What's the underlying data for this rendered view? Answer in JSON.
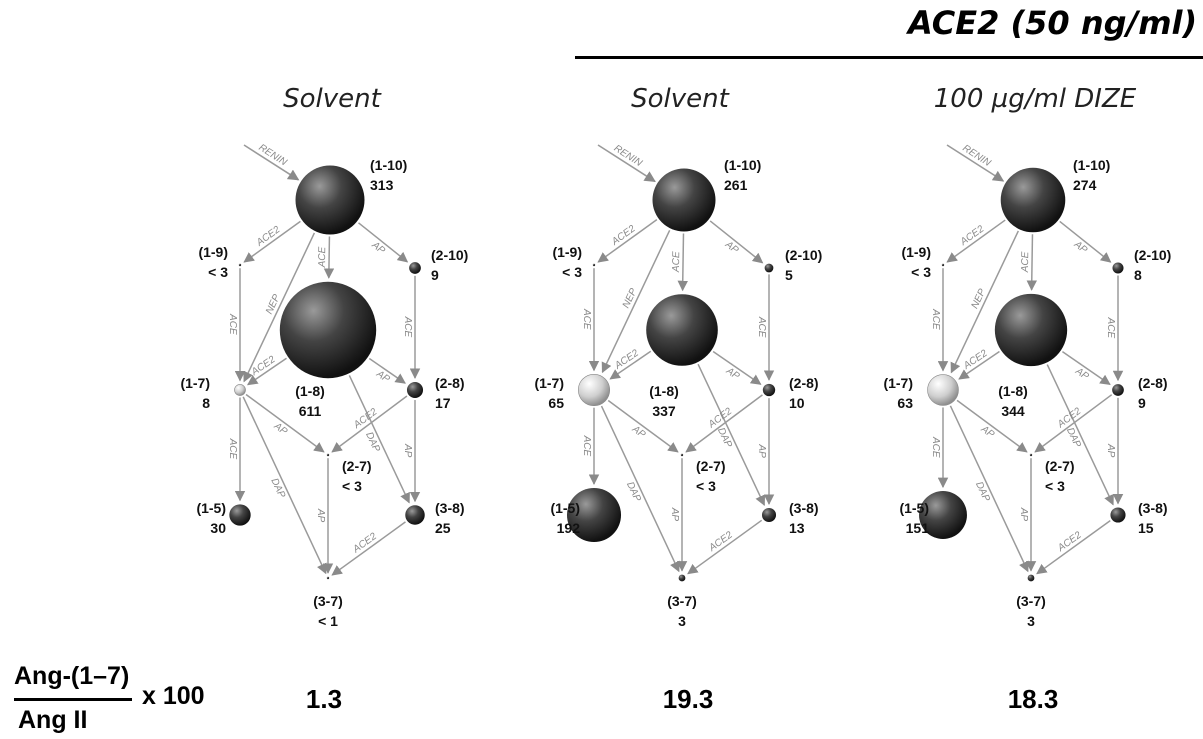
{
  "header": {
    "title": "ACE2 (50 ng/ml)"
  },
  "formula": {
    "numerator": "Ang-(1–7)",
    "denominator": "Ang II",
    "multiplier": "x 100"
  },
  "colors": {
    "node_dark": "#2f2f2f",
    "node_light": "#c8c8c8",
    "edge": "#9a9a9a",
    "edge_label": "#8a8a8a"
  },
  "enzymes": [
    "RENIN",
    "ACE2",
    "ACE",
    "AP",
    "NEP",
    "DAP"
  ],
  "panels": [
    {
      "title": "Solvent",
      "ratio": "1.3",
      "nodes": {
        "n1_10": {
          "id": "(1-10)",
          "value": "313"
        },
        "n1_9": {
          "id": "(1-9)",
          "value": "< 3"
        },
        "n2_10": {
          "id": "(2-10)",
          "value": "9"
        },
        "n1_8": {
          "id": "(1-8)",
          "value": "611"
        },
        "n1_7": {
          "id": "(1-7)",
          "value": "8"
        },
        "n2_8": {
          "id": "(2-8)",
          "value": "17"
        },
        "n2_7": {
          "id": "(2-7)",
          "value": "< 3"
        },
        "n1_5": {
          "id": "(1-5)",
          "value": "30"
        },
        "n3_8": {
          "id": "(3-8)",
          "value": "25"
        },
        "n3_7": {
          "id": "(3-7)",
          "value": "< 1"
        }
      }
    },
    {
      "title": "Solvent",
      "ratio": "19.3",
      "nodes": {
        "n1_10": {
          "id": "(1-10)",
          "value": "261"
        },
        "n1_9": {
          "id": "(1-9)",
          "value": "< 3"
        },
        "n2_10": {
          "id": "(2-10)",
          "value": "5"
        },
        "n1_8": {
          "id": "(1-8)",
          "value": "337"
        },
        "n1_7": {
          "id": "(1-7)",
          "value": "65"
        },
        "n2_8": {
          "id": "(2-8)",
          "value": "10"
        },
        "n2_7": {
          "id": "(2-7)",
          "value": "< 3"
        },
        "n1_5": {
          "id": "(1-5)",
          "value": "192"
        },
        "n3_8": {
          "id": "(3-8)",
          "value": "13"
        },
        "n3_7": {
          "id": "(3-7)",
          "value": "3"
        }
      }
    },
    {
      "title": "100 µg/ml DIZE",
      "ratio": "18.3",
      "nodes": {
        "n1_10": {
          "id": "(1-10)",
          "value": "274"
        },
        "n1_9": {
          "id": "(1-9)",
          "value": "< 3"
        },
        "n2_10": {
          "id": "(2-10)",
          "value": "8"
        },
        "n1_8": {
          "id": "(1-8)",
          "value": "344"
        },
        "n1_7": {
          "id": "(1-7)",
          "value": "63"
        },
        "n2_8": {
          "id": "(2-8)",
          "value": "9"
        },
        "n2_7": {
          "id": "(2-7)",
          "value": "< 3"
        },
        "n1_5": {
          "id": "(1-5)",
          "value": "151"
        },
        "n3_8": {
          "id": "(3-8)",
          "value": "15"
        },
        "n3_7": {
          "id": "(3-7)",
          "value": "3"
        }
      }
    }
  ]
}
